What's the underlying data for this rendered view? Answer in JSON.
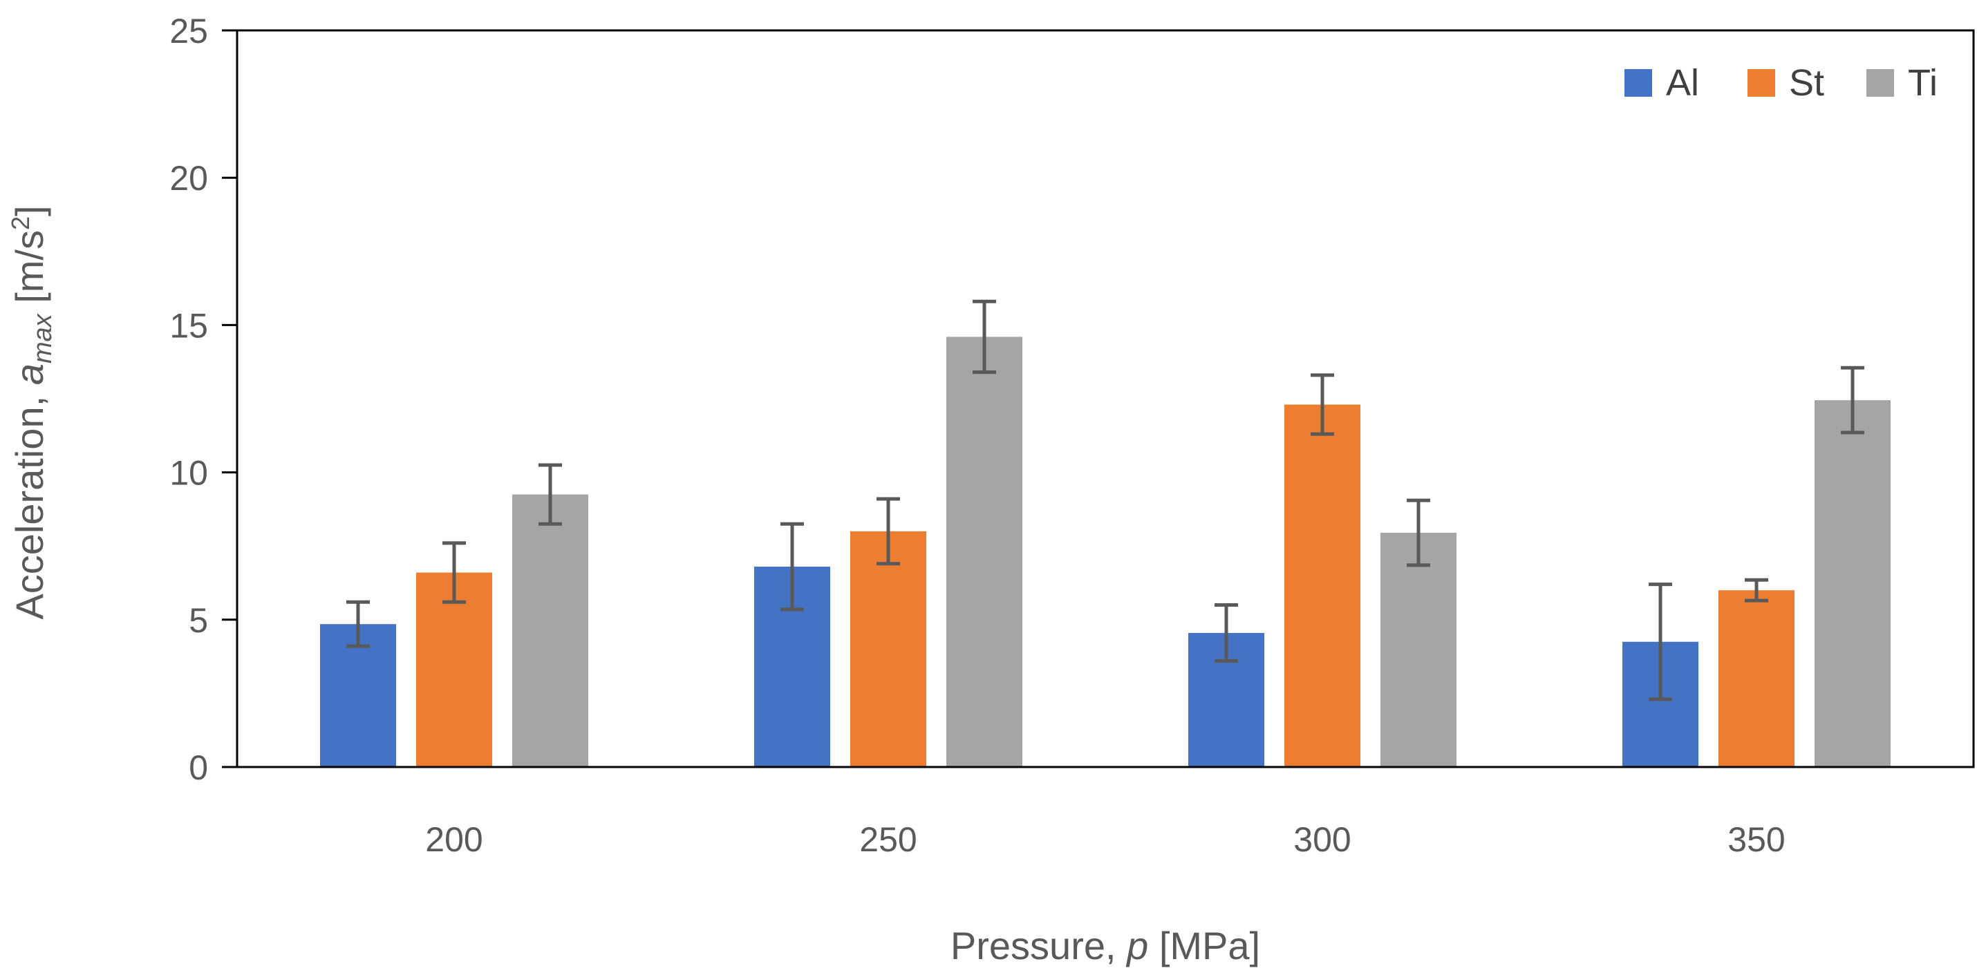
{
  "chart_data": {
    "type": "bar",
    "categories": [
      "200",
      "250",
      "300",
      "350"
    ],
    "series": [
      {
        "name": "Al",
        "color": "#4472C4",
        "values": [
          4.85,
          6.8,
          4.55,
          4.25
        ],
        "errors": [
          0.75,
          1.45,
          0.95,
          1.95
        ]
      },
      {
        "name": "St",
        "color": "#ED7D31",
        "values": [
          6.6,
          8.0,
          12.3,
          6.0
        ],
        "errors": [
          1.0,
          1.1,
          1.0,
          0.35
        ]
      },
      {
        "name": "Ti",
        "color": "#A5A5A5",
        "values": [
          9.25,
          14.6,
          7.95,
          12.45
        ],
        "errors": [
          1.0,
          1.2,
          1.1,
          1.1
        ]
      }
    ],
    "ylim": [
      0,
      25
    ],
    "yticks": [
      "0",
      "5",
      "10",
      "15",
      "20",
      "25"
    ],
    "xlabel": {
      "prefix": "Pressure, ",
      "var": "p",
      "suffix": " [MPa]"
    },
    "ylabel": {
      "prefix": "Acceleration, ",
      "var": "a",
      "sub": "max",
      "unit_pre": " [m/s",
      "unit_sup": "2",
      "unit_post": "]"
    },
    "legend_position": "top-right",
    "error_bar_color": "#595959"
  }
}
